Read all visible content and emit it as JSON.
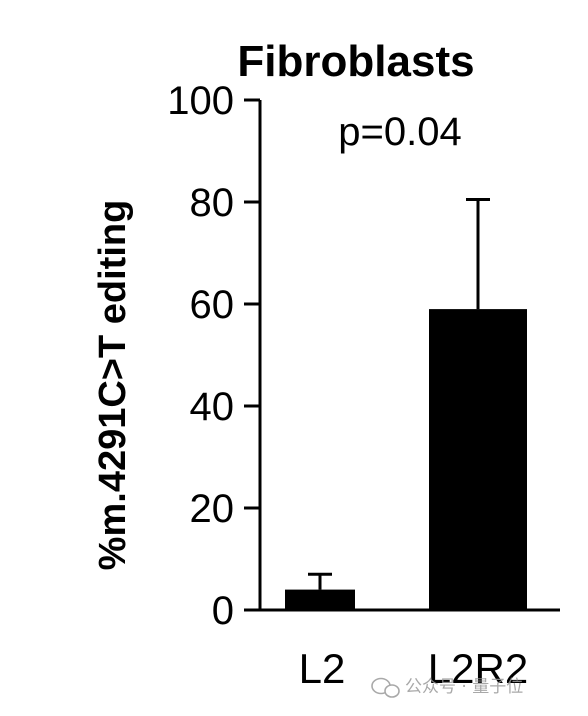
{
  "chart_data": {
    "type": "bar",
    "title": "Fibroblasts",
    "xlabel": "",
    "ylabel": "%m.4291C>T editing",
    "ylim": [
      0,
      100
    ],
    "yticks": [
      0,
      20,
      40,
      60,
      80,
      100
    ],
    "categories": [
      "L2",
      "L2R2"
    ],
    "values": [
      4,
      59
    ],
    "error_upper": [
      7,
      80.5
    ],
    "bar_color": "#000000",
    "annotation": "p=0.04",
    "grid": false,
    "legend": "none"
  },
  "watermark": {
    "text": "公众号 · 量子位",
    "icon": "wechat-icon"
  }
}
